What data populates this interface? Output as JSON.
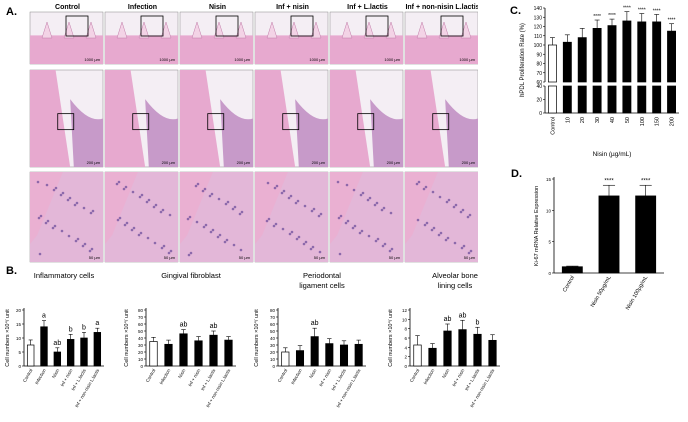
{
  "panel_labels": {
    "a": "A.",
    "b": "B.",
    "c": "C.",
    "d": "D."
  },
  "histology": {
    "columns": [
      "Control",
      "Infection",
      "Nisin",
      "Inf + nisin",
      "Inf + L.lactis",
      "Inf + non-nisin L.lactis"
    ],
    "scale_bars": {
      "top": "1000 µm",
      "middle": "200 µm",
      "bottom": "50 µm"
    },
    "colors": {
      "tissue_pink": "#e7a9cf",
      "stain_purple": "#6f4f9c",
      "background": "#f4eef4"
    }
  },
  "chart_data": [
    {
      "id": "B1",
      "type": "bar",
      "title": "Inflammatory cells",
      "ylabel": "Cell numbers ×10⁴/ unit",
      "ylim": [
        0,
        20
      ],
      "yticks": [
        0,
        5,
        10,
        15,
        20
      ],
      "categories": [
        "Control",
        "Infection",
        "Nisin",
        "Inf + nisin",
        "Inf + L.lactis",
        "Inf + non-nisin L.lactis"
      ],
      "values": [
        7.5,
        14,
        5,
        9.5,
        10,
        12
      ],
      "errors": [
        1.8,
        2.2,
        1.5,
        1.8,
        2.0,
        1.5
      ],
      "annotations": [
        "",
        "a",
        "ab",
        "b",
        "b",
        "a"
      ],
      "fills": [
        "#ffffff",
        "#000000",
        "#000000",
        "#000000",
        "#000000",
        "#000000"
      ]
    },
    {
      "id": "B2",
      "type": "bar",
      "title": "Gingival fibroblast",
      "ylabel": "Cell numbers ×10⁴/ unit",
      "ylim": [
        0,
        80
      ],
      "yticks": [
        0,
        10,
        20,
        30,
        40,
        50,
        60,
        70,
        80
      ],
      "categories": [
        "Control",
        "Infection",
        "Nisin",
        "Inf + nisin",
        "Inf + L.lactis",
        "Inf + non-nisin L.lactis"
      ],
      "values": [
        35,
        31,
        46,
        36,
        44,
        37
      ],
      "errors": [
        6,
        6,
        6,
        6,
        6,
        5
      ],
      "annotations": [
        "",
        "",
        "ab",
        "",
        "ab",
        ""
      ],
      "fills": [
        "#ffffff",
        "#000000",
        "#000000",
        "#000000",
        "#000000",
        "#000000"
      ]
    },
    {
      "id": "B3",
      "type": "bar",
      "title": "Periodontal ligament cells",
      "ylabel": "Cell numbers ×10⁴/ unit",
      "ylim": [
        0,
        80
      ],
      "yticks": [
        0,
        10,
        20,
        30,
        40,
        50,
        60,
        70,
        80
      ],
      "categories": [
        "Control",
        "Infection",
        "Nisin",
        "Inf + nisin",
        "Inf + L.lactis",
        "Inf + non-nisin L.lactis"
      ],
      "values": [
        20,
        22,
        42,
        32,
        30,
        31
      ],
      "errors": [
        6,
        7,
        12,
        7,
        6,
        6
      ],
      "annotations": [
        "",
        "",
        "ab",
        "",
        "",
        ""
      ],
      "fills": [
        "#ffffff",
        "#000000",
        "#000000",
        "#000000",
        "#000000",
        "#000000"
      ]
    },
    {
      "id": "B4",
      "type": "bar",
      "title": "Alveolar bone lining cells",
      "ylabel": "Cell numbers ×10⁴/ unit",
      "ylim": [
        0,
        12
      ],
      "yticks": [
        0,
        2,
        4,
        6,
        8,
        10,
        12
      ],
      "categories": [
        "Control",
        "Infection",
        "Nisin",
        "Inf + nisin",
        "Inf + L.lactis",
        "Inf + non-nisin L.lactis"
      ],
      "values": [
        4.5,
        3.8,
        7.5,
        7.8,
        6.8,
        5.5
      ],
      "errors": [
        2,
        1,
        1.5,
        2,
        1.5,
        1.2
      ],
      "annotations": [
        "",
        "",
        "ab",
        "ab",
        "b",
        ""
      ],
      "fills": [
        "#ffffff",
        "#000000",
        "#000000",
        "#000000",
        "#000000",
        "#000000"
      ]
    },
    {
      "id": "C",
      "type": "bar",
      "ylabel": "hPDL Proliferation Rate (%)",
      "xlabel": "Nisin (µg/mL)",
      "ylim": [
        0,
        140
      ],
      "axis_break": [
        40,
        60
      ],
      "yticks": [
        0,
        20,
        40,
        60,
        70,
        80,
        90,
        100,
        110,
        120,
        130,
        140
      ],
      "categories": [
        "Control",
        "10",
        "20",
        "30",
        "40",
        "50",
        "100",
        "150",
        "200"
      ],
      "values": [
        100,
        103,
        108,
        118,
        121,
        126,
        125,
        125,
        115
      ],
      "errors": [
        8,
        8,
        10,
        9,
        7,
        10,
        9,
        8,
        8
      ],
      "annotations": [
        "",
        "",
        "",
        "****",
        "****",
        "****",
        "****",
        "****",
        "****"
      ],
      "fills": [
        "#ffffff",
        "#000000",
        "#000000",
        "#000000",
        "#000000",
        "#000000",
        "#000000",
        "#000000",
        "#000000"
      ]
    },
    {
      "id": "D",
      "type": "bar",
      "ylabel": "Ki-67 mRNA Relative Expression",
      "ylim": [
        0,
        15
      ],
      "yticks": [
        0,
        5,
        10,
        15
      ],
      "categories": [
        "Control",
        "Nisin 50µg/mL",
        "Nisin 100µg/mL"
      ],
      "values": [
        1,
        12.3,
        12.3
      ],
      "errors": [
        0.1,
        1.7,
        1.7
      ],
      "annotations": [
        "",
        "****",
        "****"
      ],
      "fills": [
        "#000000",
        "#000000",
        "#000000"
      ]
    }
  ]
}
